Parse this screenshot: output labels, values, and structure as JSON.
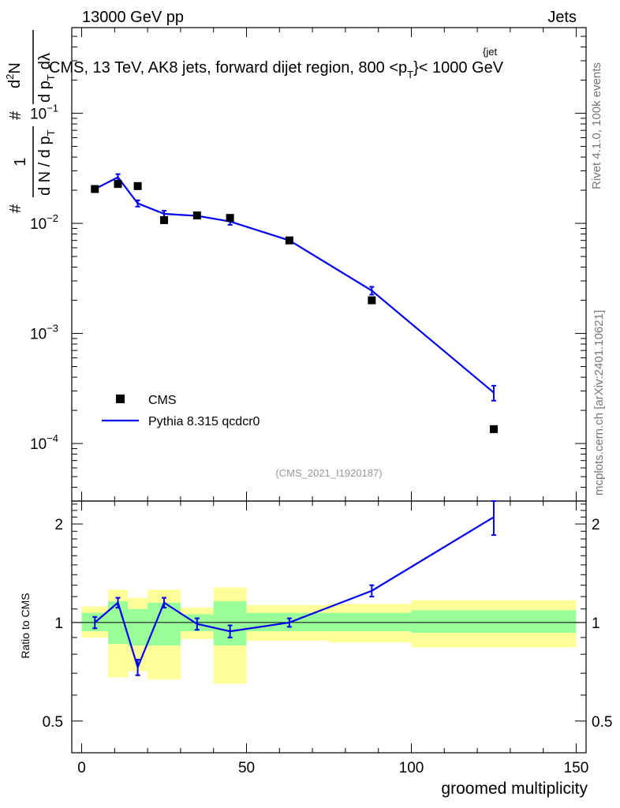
{
  "header": {
    "process": "13000 GeV pp",
    "category": "Jets"
  },
  "side_labels": {
    "rivet": "Rivet 4.1.0,  100k events",
    "mcplots": "mcplots.cern.ch [arXiv:2401.10621]"
  },
  "chart_data": {
    "type": "line",
    "title": "CMS, 13 TeV, AK8 jets, forward dijet region, 800 <p",
    "title_sup": "{jet",
    "title_sub": "T",
    "title_tail": "}< 1000 GeV",
    "ylabel": {
      "hash1": "#",
      "one": "1",
      "dN_dp": "d N / d p",
      "T": "T",
      "hash2": "#",
      "d2N": "d",
      "d2N_sup": "2",
      "d2N_N": "N",
      "dp": "d p",
      "dp_sub": "T",
      "dlam": "dλ"
    },
    "xlabel": "groomed multiplicity",
    "ratio_ylabel": "Ratio to CMS",
    "watermark": "(CMS_2021_I1920187)",
    "xlim": [
      -3,
      153
    ],
    "ylim_log": [
      3e-05,
      0.6
    ],
    "ratio_ylim": [
      0.4,
      2.35
    ],
    "x_ticks": [
      "0",
      "50",
      "100",
      "150"
    ],
    "y_ticks": [
      {
        "base": "10",
        "exp": "−1",
        "value": 0.1
      },
      {
        "base": "10",
        "exp": "−2",
        "value": 0.01
      },
      {
        "base": "10",
        "exp": "−3",
        "value": 0.001
      },
      {
        "base": "10",
        "exp": "−4",
        "value": 0.0001
      }
    ],
    "ratio_ticks": [
      "0.5",
      "1",
      "2"
    ],
    "legend": {
      "data_label": "CMS",
      "mc_label": "Pythia 8.315 qcdcr0",
      "placement": "lower-left"
    },
    "colors": {
      "mc": "#0000ee",
      "data": "#000000",
      "band_inner": "#99ff99",
      "band_outer": "#ffff99"
    },
    "cms_data": {
      "x": [
        4,
        11,
        17,
        25,
        35,
        45,
        63,
        88,
        125
      ],
      "y": [
        0.0205,
        0.0228,
        0.0218,
        0.0107,
        0.0118,
        0.0112,
        0.007,
        0.002,
        0.000135
      ]
    },
    "pythia": {
      "x": [
        4,
        11,
        17,
        25,
        35,
        45,
        63,
        88,
        125
      ],
      "y": [
        0.0205,
        0.0262,
        0.0152,
        0.0122,
        0.0117,
        0.0104,
        0.007,
        0.00245,
        0.00029
      ],
      "err_lo": [
        0.0,
        0.0018,
        0.001,
        0.0008,
        0.0006,
        0.0007,
        0.0003,
        0.0002,
        4.5e-05
      ],
      "err_hi": [
        0.0,
        0.0018,
        0.001,
        0.0008,
        0.0006,
        0.0007,
        0.0003,
        0.0002,
        4.5e-05
      ]
    },
    "ratio": {
      "x": [
        4,
        11,
        17,
        25,
        35,
        45,
        63,
        88,
        125
      ],
      "values": [
        1.0,
        1.15,
        0.73,
        1.15,
        0.99,
        0.94,
        1.0,
        1.25,
        2.1
      ],
      "err": [
        0.04,
        0.04,
        0.04,
        0.04,
        0.04,
        0.04,
        0.03,
        0.05,
        0.25
      ]
    },
    "uncertainty_bands": [
      {
        "x_lo": 0,
        "x_hi": 8,
        "inner_lo": 0.94,
        "inner_hi": 1.07,
        "outer_lo": 0.9,
        "outer_hi": 1.12
      },
      {
        "x_lo": 8,
        "x_hi": 14,
        "inner_lo": 0.86,
        "inner_hi": 1.16,
        "outer_lo": 0.68,
        "outer_hi": 1.26
      },
      {
        "x_lo": 14,
        "x_hi": 20,
        "inner_lo": 0.85,
        "inner_hi": 1.1,
        "outer_lo": 0.71,
        "outer_hi": 1.19
      },
      {
        "x_lo": 20,
        "x_hi": 30,
        "inner_lo": 0.85,
        "inner_hi": 1.15,
        "outer_lo": 0.67,
        "outer_hi": 1.26
      },
      {
        "x_lo": 30,
        "x_hi": 40,
        "inner_lo": 0.94,
        "inner_hi": 1.06,
        "outer_lo": 0.89,
        "outer_hi": 1.11
      },
      {
        "x_lo": 40,
        "x_hi": 50,
        "inner_lo": 0.85,
        "inner_hi": 1.16,
        "outer_lo": 0.65,
        "outer_hi": 1.28
      },
      {
        "x_lo": 50,
        "x_hi": 75,
        "inner_lo": 0.94,
        "inner_hi": 1.07,
        "outer_lo": 0.88,
        "outer_hi": 1.13
      },
      {
        "x_lo": 75,
        "x_hi": 100,
        "inner_lo": 0.94,
        "inner_hi": 1.07,
        "outer_lo": 0.87,
        "outer_hi": 1.14
      },
      {
        "x_lo": 100,
        "x_hi": 150,
        "inner_lo": 0.93,
        "inner_hi": 1.09,
        "outer_lo": 0.84,
        "outer_hi": 1.17
      }
    ]
  }
}
